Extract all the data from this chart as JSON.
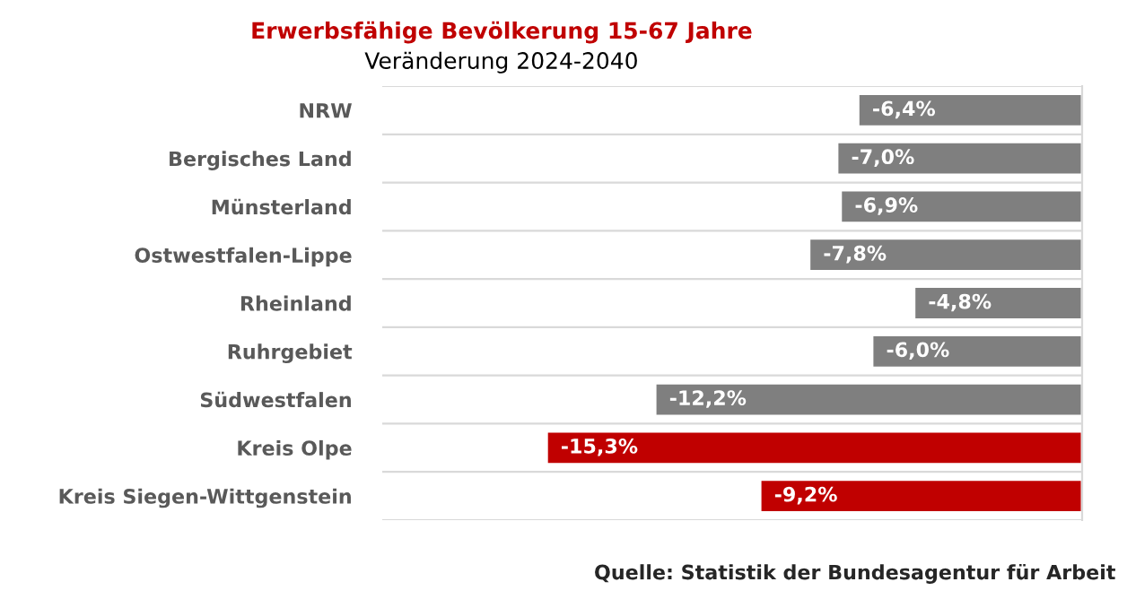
{
  "chart_data": {
    "type": "bar",
    "orientation": "horizontal",
    "title": "Erwerbsfähige Bevölkerung 15-67 Jahre",
    "subtitle": "Veränderung 2024-2040",
    "categories": [
      "NRW",
      "Bergisches Land",
      "Münsterland",
      "Ostwestfalen-Lippe",
      "Rheinland",
      "Ruhrgebiet",
      "Südwestfalen",
      "Kreis Olpe",
      "Kreis Siegen-Wittgenstein"
    ],
    "values": [
      -6.4,
      -7.0,
      -6.9,
      -7.8,
      -4.8,
      -6.0,
      -12.2,
      -15.3,
      -9.2
    ],
    "value_labels": [
      "-6,4%",
      "-7,0%",
      "-6,9%",
      "-7,8%",
      "-4,8%",
      "-6,0%",
      "-12,2%",
      "-15,3%",
      "-9,2%"
    ],
    "colors": [
      "#7f7f7f",
      "#7f7f7f",
      "#7f7f7f",
      "#7f7f7f",
      "#7f7f7f",
      "#7f7f7f",
      "#7f7f7f",
      "#c00000",
      "#c00000"
    ],
    "xlim": [
      -20,
      0
    ],
    "tick_labels": "y",
    "grid": "y",
    "legend": false,
    "annotations": [
      "Quelle: Statistik der Bundesagentur für Arbeit"
    ]
  }
}
